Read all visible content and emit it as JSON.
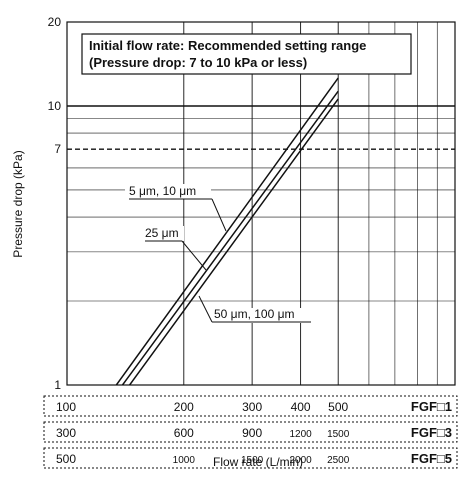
{
  "chart_data": {
    "type": "line",
    "x_scale": "log",
    "y_scale": "log",
    "xlim": [
      100,
      1000
    ],
    "ylim": [
      1,
      20
    ],
    "ylabel": "Pressure drop (kPa)",
    "xlabel": "Flow rate (L/min)",
    "y_ticks": [
      "1",
      "7",
      "10",
      "20"
    ],
    "grid": true,
    "note": {
      "line1": "Initial flow rate: Recommended setting range",
      "line2": "(Pressure drop: 7 to 10 kPa or less)"
    },
    "reference_lines": [
      {
        "y": 7,
        "style": "dashed"
      },
      {
        "y": 10,
        "style": "solid"
      }
    ],
    "series": [
      {
        "name": "5 μm, 10 μm",
        "x": [
          134,
          500
        ],
        "y": [
          1,
          12.6
        ]
      },
      {
        "name": "25 μm",
        "x": [
          139,
          500
        ],
        "y": [
          1,
          11.3
        ]
      },
      {
        "name": "50 μm, 100 μm",
        "x": [
          145,
          500
        ],
        "y": [
          1,
          10.6
        ]
      }
    ],
    "x_rows": [
      {
        "model": "FGF□1",
        "labels": [
          {
            "text": "100",
            "x": 100
          },
          {
            "text": "200",
            "x": 200
          },
          {
            "text": "300",
            "x": 300
          },
          {
            "text": "400",
            "x": 400
          },
          {
            "text": "500",
            "x": 500
          }
        ]
      },
      {
        "model": "FGF□3",
        "labels": [
          {
            "text": "300",
            "x": 100
          },
          {
            "text": "600",
            "x": 200
          },
          {
            "text": "900",
            "x": 300
          },
          {
            "text": "1200",
            "x": 400
          },
          {
            "text": "1500",
            "x": 500
          }
        ]
      },
      {
        "model": "FGF□5",
        "labels": [
          {
            "text": "500",
            "x": 100
          },
          {
            "text": "1000",
            "x": 200
          },
          {
            "text": "1500",
            "x": 300
          },
          {
            "text": "2000",
            "x": 400
          },
          {
            "text": "2500",
            "x": 500
          }
        ]
      }
    ]
  }
}
